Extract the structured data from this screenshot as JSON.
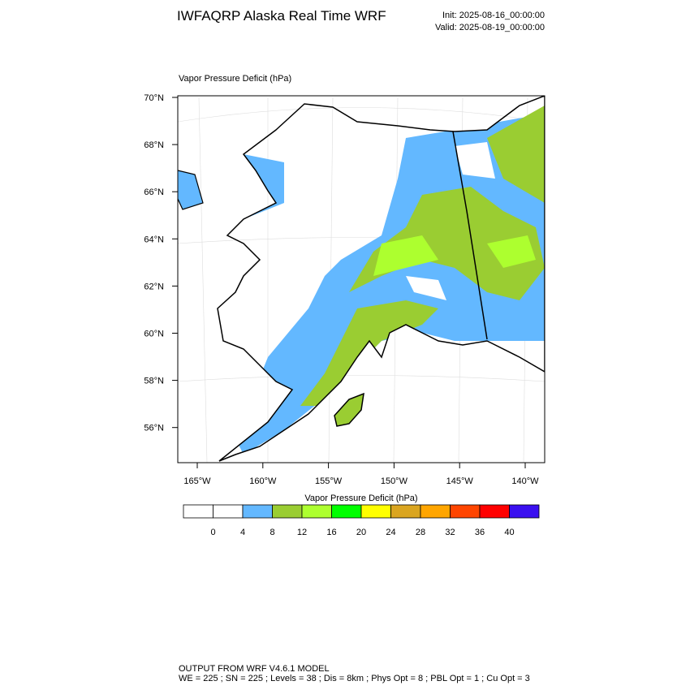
{
  "header": {
    "title": "IWFAQRP Alaska Real Time WRF",
    "init": "Init: 2025-08-16_00:00:00",
    "valid": "Valid: 2025-08-19_00:00:00"
  },
  "map": {
    "title": "Vapor Pressure Deficit   (hPa)",
    "lat_labels": [
      "70°N",
      "68°N",
      "66°N",
      "64°N",
      "62°N",
      "60°N",
      "58°N",
      "56°N"
    ],
    "lon_labels": [
      "165°W",
      "160°W",
      "155°W",
      "150°W",
      "145°W",
      "140°W"
    ]
  },
  "colorbar": {
    "title": "Vapor Pressure Deficit  (hPa)",
    "colors": [
      "#ffffff",
      "#ffffff",
      "#63b8ff",
      "#9acd32",
      "#adff2f",
      "#00ff00",
      "#ffff00",
      "#daa520",
      "#ffa500",
      "#ff4500",
      "#ff0000",
      "#3a10f0"
    ],
    "labels": [
      "0",
      "4",
      "8",
      "12",
      "16",
      "20",
      "24",
      "28",
      "32",
      "36",
      "40"
    ]
  },
  "footer": {
    "line1": "OUTPUT FROM WRF V4.6.1 MODEL",
    "line2": "WE = 225 ; SN = 225 ; Levels = 38 ; Dis = 8km ; Phys Opt = 8 ; PBL Opt = 1 ; Cu Opt = 3"
  }
}
